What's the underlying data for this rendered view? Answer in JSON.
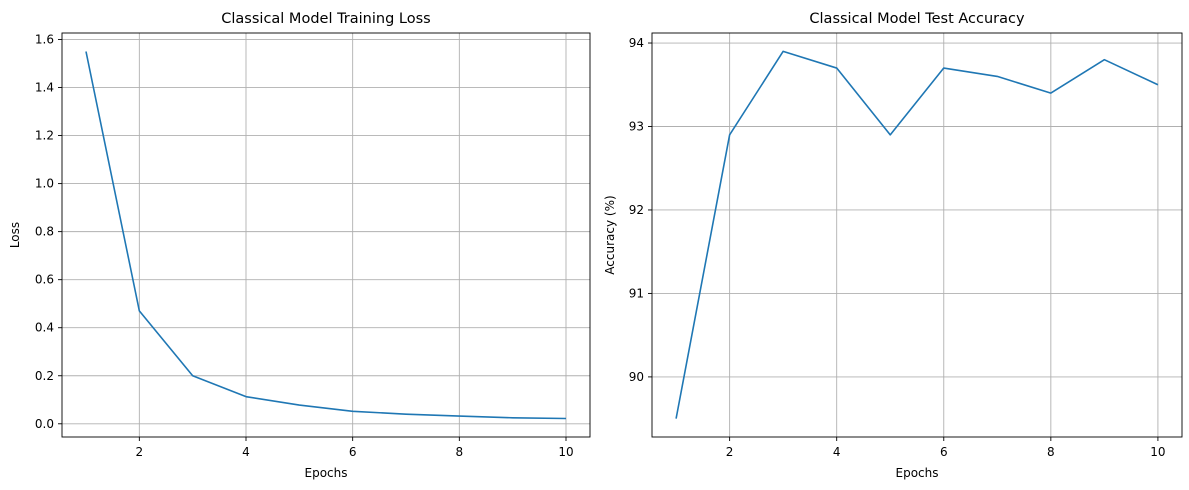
{
  "chart_data": [
    {
      "type": "line",
      "title": "Classical Model Training Loss",
      "xlabel": "Epochs",
      "ylabel": "Loss",
      "x": [
        1,
        2,
        3,
        4,
        5,
        6,
        7,
        8,
        9,
        10
      ],
      "series": [
        {
          "values": [
            1.55,
            0.47,
            0.2,
            0.113,
            0.078,
            0.052,
            0.04,
            0.032,
            0.025,
            0.022
          ]
        }
      ],
      "xlim": [
        0.55,
        10.45
      ],
      "ylim": [
        -0.055,
        1.627
      ],
      "xticks": [
        2,
        4,
        6,
        8,
        10
      ],
      "yticks": [
        0.0,
        0.2,
        0.4,
        0.6,
        0.8,
        1.0,
        1.2,
        1.4,
        1.6
      ],
      "ytick_labels": [
        "0.0",
        "0.2",
        "0.4",
        "0.6",
        "0.8",
        "1.0",
        "1.2",
        "1.4",
        "1.6"
      ],
      "grid": true,
      "color": "#1f77b4"
    },
    {
      "type": "line",
      "title": "Classical Model Test Accuracy",
      "xlabel": "Epochs",
      "ylabel": "Accuracy (%)",
      "x": [
        1,
        2,
        3,
        4,
        5,
        6,
        7,
        8,
        9,
        10
      ],
      "series": [
        {
          "values": [
            89.5,
            92.9,
            93.9,
            93.7,
            92.9,
            93.7,
            93.6,
            93.4,
            93.8,
            93.5
          ]
        }
      ],
      "xlim": [
        0.55,
        10.45
      ],
      "ylim": [
        89.28,
        94.12
      ],
      "xticks": [
        2,
        4,
        6,
        8,
        10
      ],
      "yticks": [
        90,
        91,
        92,
        93,
        94
      ],
      "ytick_labels": [
        "90",
        "91",
        "92",
        "93",
        "94"
      ],
      "grid": true,
      "color": "#1f77b4"
    }
  ]
}
